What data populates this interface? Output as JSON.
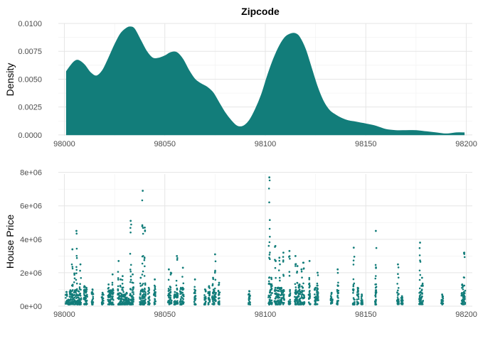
{
  "chart_data": {
    "title": "Zipcode",
    "accent_color": "#127d7a",
    "density_panel": {
      "type": "area",
      "ylabel": "Density",
      "xlabel": "",
      "xlim": [
        97997,
        98203
      ],
      "ylim": [
        -7e-05,
        0.01
      ],
      "x_ticks": [
        98000,
        98050,
        98100,
        98150,
        98200
      ],
      "x_tick_labels": [
        "98000",
        "98050",
        "98100",
        "98150",
        "98200"
      ],
      "y_ticks": [
        0.0,
        0.0025,
        0.005,
        0.0075,
        0.01
      ],
      "y_tick_labels": [
        "0.0000",
        "0.0025",
        "0.0050",
        "0.0075",
        "0.0100"
      ],
      "grid": true,
      "x": [
        98001,
        98003,
        98005,
        98007,
        98010,
        98013,
        98016,
        98019,
        98022,
        98025,
        98028,
        98031,
        98033,
        98035,
        98038,
        98041,
        98044,
        98047,
        98050,
        98053,
        98056,
        98059,
        98062,
        98065,
        98068,
        98071,
        98074,
        98077,
        98080,
        98083,
        98086,
        98089,
        98092,
        98095,
        98098,
        98101,
        98104,
        98107,
        98110,
        98113,
        98115,
        98117,
        98120,
        98123,
        98126,
        98129,
        98132,
        98135,
        98138,
        98141,
        98144,
        98147,
        98150,
        98155,
        98160,
        98165,
        98170,
        98175,
        98180,
        98185,
        98190,
        98195,
        98199
      ],
      "y": [
        0.0057,
        0.0062,
        0.0066,
        0.0067,
        0.0063,
        0.0056,
        0.0053,
        0.0058,
        0.0069,
        0.0081,
        0.0091,
        0.0096,
        0.0097,
        0.0095,
        0.0085,
        0.0075,
        0.0069,
        0.0069,
        0.0071,
        0.0074,
        0.0074,
        0.0068,
        0.0058,
        0.005,
        0.0046,
        0.0043,
        0.0038,
        0.0029,
        0.002,
        0.0013,
        0.0008,
        0.0008,
        0.0013,
        0.0023,
        0.0036,
        0.0053,
        0.0068,
        0.008,
        0.0088,
        0.0091,
        0.0091,
        0.0088,
        0.0077,
        0.006,
        0.0043,
        0.003,
        0.0022,
        0.0018,
        0.0015,
        0.0013,
        0.0012,
        0.0011,
        0.001,
        0.0008,
        0.0005,
        0.0004,
        0.0004,
        0.0004,
        0.0003,
        0.0002,
        0.0001,
        0.0002,
        0.0002
      ]
    },
    "scatter_panel": {
      "type": "scatter",
      "ylabel": "House Price",
      "xlabel": "",
      "xlim": [
        97997,
        98203
      ],
      "ylim": [
        0,
        7900000
      ],
      "x_ticks": [
        98000,
        98050,
        98100,
        98150,
        98200
      ],
      "x_tick_labels": [
        "98000",
        "98050",
        "98100",
        "98150",
        "98200"
      ],
      "y_ticks": [
        0,
        2000000,
        4000000,
        6000000,
        8000000
      ],
      "y_tick_labels": [
        "0e+00",
        "2e+06",
        "4e+06",
        "6e+06",
        "8e+06"
      ],
      "grid": true,
      "zipcodes": [
        98001,
        98002,
        98003,
        98004,
        98005,
        98006,
        98007,
        98008,
        98010,
        98011,
        98014,
        98019,
        98022,
        98023,
        98024,
        98027,
        98028,
        98029,
        98030,
        98031,
        98032,
        98033,
        98034,
        98038,
        98039,
        98040,
        98042,
        98045,
        98052,
        98053,
        98055,
        98056,
        98058,
        98059,
        98065,
        98070,
        98072,
        98074,
        98075,
        98077,
        98092,
        98102,
        98103,
        98105,
        98106,
        98107,
        98108,
        98109,
        98112,
        98115,
        98116,
        98117,
        98118,
        98119,
        98122,
        98125,
        98126,
        98133,
        98136,
        98144,
        98146,
        98148,
        98155,
        98166,
        98168,
        98177,
        98178,
        98188,
        98198,
        98199
      ],
      "max_prices": [
        850000,
        390000,
        950000,
        3400000,
        1960000,
        4500000,
        900000,
        2500000,
        1200000,
        1100000,
        1000000,
        800000,
        1300000,
        950000,
        1900000,
        2700000,
        1600000,
        1800000,
        700000,
        800000,
        450000,
        5100000,
        1900000,
        1700000,
        6900000,
        4700000,
        1100000,
        1600000,
        2200000,
        2000000,
        850000,
        3000000,
        1100000,
        2300000,
        1600000,
        1000000,
        1200000,
        1700000,
        3100000,
        1400000,
        900000,
        7700000,
        1700000,
        3600000,
        1100000,
        2900000,
        1100000,
        3200000,
        3300000,
        3000000,
        2400000,
        1300000,
        2200000,
        2600000,
        2700000,
        1100000,
        2000000,
        800000,
        2200000,
        3500000,
        1100000,
        700000,
        4500000,
        2500000,
        600000,
        3800000,
        1700000,
        700000,
        1300000,
        3200000
      ]
    }
  }
}
